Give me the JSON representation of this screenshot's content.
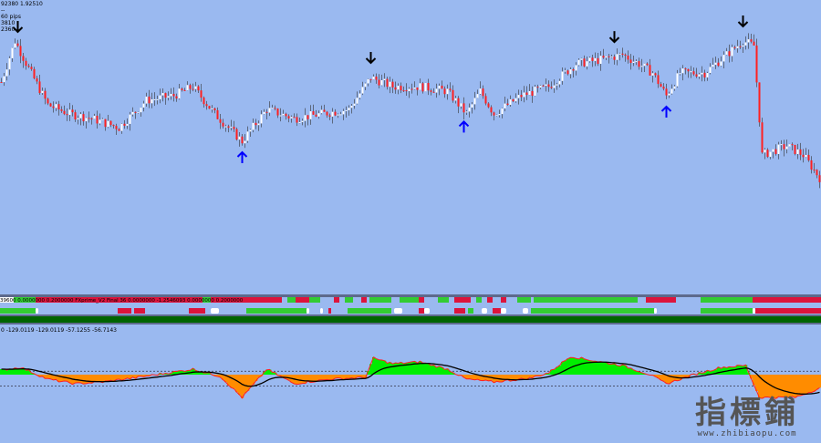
{
  "header": {
    "line1": "92380 1.92510",
    "line2": "--",
    "line3": "60 pips",
    "line4": "3810",
    "line5": "2360"
  },
  "indicator": {
    "label": "39600 0.0000000 0.2000000 FXprime_V2 Final 36 0.0000000 -1.2546093 0.0000000 0.2000000",
    "row1": [
      [
        0,
        5,
        "#ffffff"
      ],
      [
        5,
        13,
        "#33cc33"
      ],
      [
        13,
        74,
        "#dc143c"
      ],
      [
        74,
        77,
        "#33cc33"
      ],
      [
        77,
        103,
        "#dc143c"
      ],
      [
        105,
        108,
        "#33cc33"
      ],
      [
        108,
        113,
        "#dc143c"
      ],
      [
        113,
        117,
        "#33cc33"
      ],
      [
        122,
        124,
        "#dc143c"
      ],
      [
        126,
        129,
        "#33cc33"
      ],
      [
        132,
        134,
        "#dc143c"
      ],
      [
        135,
        143,
        "#33cc33"
      ],
      [
        146,
        155,
        "#33cc33"
      ],
      [
        153,
        155,
        "#dc143c"
      ],
      [
        160,
        164,
        "#33cc33"
      ],
      [
        166,
        172,
        "#dc143c"
      ],
      [
        174,
        176,
        "#33cc33"
      ],
      [
        178,
        180,
        "#dc143c"
      ],
      [
        183,
        185,
        "#dc143c"
      ],
      [
        189,
        194,
        "#33cc33"
      ],
      [
        195,
        233,
        "#33cc33"
      ],
      [
        236,
        247,
        "#dc143c"
      ],
      [
        256,
        275,
        "#33cc33"
      ],
      [
        275,
        300,
        "#dc143c"
      ]
    ],
    "row2": [
      [
        0,
        13,
        "#33cc33"
      ],
      [
        13,
        14,
        "#ffffff"
      ],
      [
        43,
        48,
        "#dc143c"
      ],
      [
        49,
        53,
        "#dc143c"
      ],
      [
        69,
        75,
        "#dc143c"
      ],
      [
        77,
        80,
        "#ffffff"
      ],
      [
        90,
        112,
        "#33cc33"
      ],
      [
        112,
        113,
        "#ffffff"
      ],
      [
        117,
        118,
        "#ffffff"
      ],
      [
        120,
        121,
        "#dc143c"
      ],
      [
        127,
        143,
        "#33cc33"
      ],
      [
        144,
        147,
        "#ffffff"
      ],
      [
        153,
        155,
        "#dc143c"
      ],
      [
        155,
        157,
        "#ffffff"
      ],
      [
        166,
        170,
        "#dc143c"
      ],
      [
        171,
        173,
        "#33cc33"
      ],
      [
        176,
        178,
        "#ffffff"
      ],
      [
        180,
        183,
        "#dc143c"
      ],
      [
        183,
        185,
        "#ffffff"
      ],
      [
        191,
        193,
        "#ffffff"
      ],
      [
        194,
        239,
        "#33cc33"
      ],
      [
        239,
        240,
        "#ffffff"
      ],
      [
        256,
        275,
        "#33cc33"
      ],
      [
        275,
        276,
        "#ffffff"
      ],
      [
        276,
        300,
        "#dc143c"
      ]
    ]
  },
  "oscillator": {
    "label": "0 -129.0119 -129.0119 -57.1255 -56.7143",
    "levels": [
      15,
      -50
    ]
  },
  "watermark": {
    "text": "指標鋪",
    "url": "www.zhibiaopu.com"
  },
  "colors": {
    "background": "#9ab9f0",
    "bull": "#ffffff",
    "bear": "#ff2020",
    "osc_pos": "#00ee00",
    "osc_neg": "#ff8c00",
    "signal": "#000000",
    "arrow_down": "#000000",
    "arrow_up": "#0000ff"
  },
  "chart_data": {
    "type": "candlestick",
    "bars": 300,
    "close_keypoints": [
      [
        0,
        1.925
      ],
      [
        5,
        1.9295
      ],
      [
        10,
        1.9265
      ],
      [
        17,
        1.9225
      ],
      [
        25,
        1.9215
      ],
      [
        33,
        1.921
      ],
      [
        43,
        1.92
      ],
      [
        53,
        1.923
      ],
      [
        63,
        1.9235
      ],
      [
        70,
        1.9245
      ],
      [
        78,
        1.9215
      ],
      [
        88,
        1.9185
      ],
      [
        97,
        1.922
      ],
      [
        107,
        1.921
      ],
      [
        117,
        1.9215
      ],
      [
        127,
        1.922
      ],
      [
        135,
        1.9255
      ],
      [
        143,
        1.9245
      ],
      [
        153,
        1.9245
      ],
      [
        163,
        1.924
      ],
      [
        170,
        1.9215
      ],
      [
        175,
        1.924
      ],
      [
        180,
        1.9215
      ],
      [
        190,
        1.9235
      ],
      [
        200,
        1.9245
      ],
      [
        210,
        1.927
      ],
      [
        220,
        1.9275
      ],
      [
        227,
        1.928
      ],
      [
        233,
        1.927
      ],
      [
        238,
        1.926
      ],
      [
        243,
        1.9235
      ],
      [
        248,
        1.926
      ],
      [
        257,
        1.926
      ],
      [
        263,
        1.9275
      ],
      [
        271,
        1.9295
      ],
      [
        275,
        1.929
      ],
      [
        278,
        1.917
      ],
      [
        287,
        1.918
      ],
      [
        293,
        1.917
      ],
      [
        299,
        1.9145
      ]
    ],
    "down_arrows": [
      6,
      135,
      224,
      271
    ],
    "up_arrows": [
      88,
      169,
      243
    ],
    "oscillator_keypoints": [
      [
        0,
        20
      ],
      [
        7,
        32
      ],
      [
        17,
        -20
      ],
      [
        27,
        -40
      ],
      [
        37,
        -32
      ],
      [
        50,
        -12
      ],
      [
        70,
        24
      ],
      [
        80,
        -8
      ],
      [
        88,
        -100
      ],
      [
        97,
        24
      ],
      [
        107,
        -40
      ],
      [
        120,
        -20
      ],
      [
        133,
        -12
      ],
      [
        136,
        72
      ],
      [
        143,
        48
      ],
      [
        153,
        56
      ],
      [
        163,
        24
      ],
      [
        170,
        -20
      ],
      [
        180,
        -32
      ],
      [
        193,
        -16
      ],
      [
        200,
        8
      ],
      [
        208,
        80
      ],
      [
        217,
        60
      ],
      [
        227,
        40
      ],
      [
        237,
        0
      ],
      [
        243,
        -40
      ],
      [
        253,
        0
      ],
      [
        263,
        32
      ],
      [
        272,
        40
      ],
      [
        277,
        -100
      ],
      [
        290,
        -100
      ],
      [
        299,
        -60
      ]
    ]
  }
}
